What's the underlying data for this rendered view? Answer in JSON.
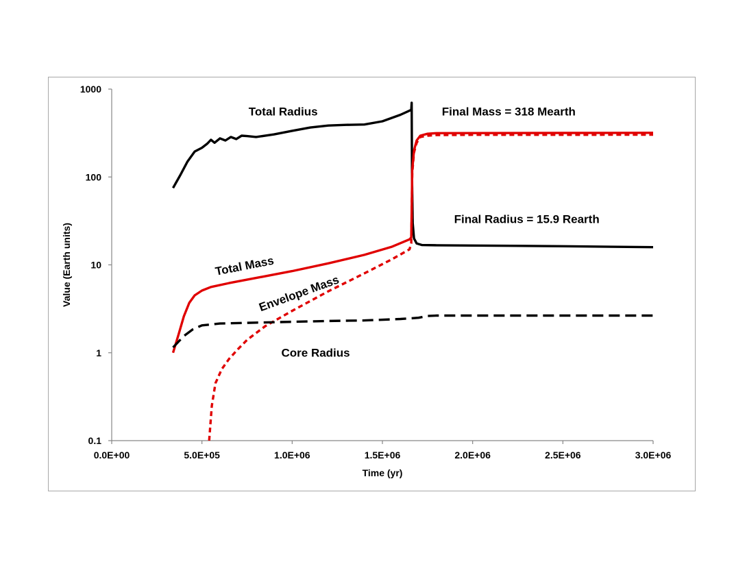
{
  "chart_data": {
    "type": "line",
    "title": "",
    "xlabel": "Time (yr)",
    "ylabel": "Value (Earth units)",
    "x_scale": "linear",
    "y_scale": "log",
    "xlim": [
      0,
      3000000
    ],
    "ylim": [
      0.1,
      1000
    ],
    "grid": false,
    "x_ticks": [
      {
        "value": 0,
        "label": "0.0E+00"
      },
      {
        "value": 500000,
        "label": "5.0E+05"
      },
      {
        "value": 1000000,
        "label": "1.0E+06"
      },
      {
        "value": 1500000,
        "label": "1.5E+06"
      },
      {
        "value": 2000000,
        "label": "2.0E+06"
      },
      {
        "value": 2500000,
        "label": "2.5E+06"
      },
      {
        "value": 3000000,
        "label": "3.0E+06"
      }
    ],
    "y_ticks": [
      {
        "value": 0.1,
        "label": "0.1"
      },
      {
        "value": 1,
        "label": "1"
      },
      {
        "value": 10,
        "label": "10"
      },
      {
        "value": 100,
        "label": "100"
      },
      {
        "value": 1000,
        "label": "1000"
      }
    ],
    "series": [
      {
        "name": "Total Radius",
        "color": "#000000",
        "dash": "solid",
        "points": [
          [
            340000,
            75
          ],
          [
            380000,
            105
          ],
          [
            420000,
            150
          ],
          [
            460000,
            195
          ],
          [
            500000,
            215
          ],
          [
            530000,
            240
          ],
          [
            550000,
            265
          ],
          [
            570000,
            245
          ],
          [
            600000,
            275
          ],
          [
            630000,
            260
          ],
          [
            660000,
            285
          ],
          [
            690000,
            270
          ],
          [
            720000,
            295
          ],
          [
            750000,
            292
          ],
          [
            800000,
            285
          ],
          [
            900000,
            305
          ],
          [
            1000000,
            335
          ],
          [
            1100000,
            365
          ],
          [
            1200000,
            385
          ],
          [
            1300000,
            392
          ],
          [
            1400000,
            395
          ],
          [
            1500000,
            430
          ],
          [
            1600000,
            510
          ],
          [
            1660000,
            580
          ],
          [
            1662000,
            700
          ],
          [
            1664000,
            100
          ],
          [
            1668000,
            30
          ],
          [
            1675000,
            20
          ],
          [
            1690000,
            17.5
          ],
          [
            1720000,
            16.8
          ],
          [
            1800000,
            16.7
          ],
          [
            2000000,
            16.6
          ],
          [
            2500000,
            16.3
          ],
          [
            3000000,
            15.9
          ]
        ]
      },
      {
        "name": "Total Mass",
        "color": "#e00000",
        "dash": "solid",
        "points": [
          [
            340000,
            1.0
          ],
          [
            370000,
            1.6
          ],
          [
            400000,
            2.6
          ],
          [
            430000,
            3.7
          ],
          [
            460000,
            4.5
          ],
          [
            500000,
            5.1
          ],
          [
            550000,
            5.6
          ],
          [
            650000,
            6.2
          ],
          [
            800000,
            7.1
          ],
          [
            1000000,
            8.5
          ],
          [
            1200000,
            10.4
          ],
          [
            1400000,
            13.0
          ],
          [
            1550000,
            16.0
          ],
          [
            1650000,
            19.5
          ],
          [
            1660000,
            20.5
          ],
          [
            1662000,
            40
          ],
          [
            1665000,
            120
          ],
          [
            1675000,
            200
          ],
          [
            1690000,
            260
          ],
          [
            1710000,
            295
          ],
          [
            1750000,
            310
          ],
          [
            1800000,
            315
          ],
          [
            2000000,
            316
          ],
          [
            2500000,
            317
          ],
          [
            3000000,
            318
          ]
        ]
      },
      {
        "name": "Envelope Mass",
        "color": "#e00000",
        "dash": "dashed",
        "points": [
          [
            540000,
            0.1
          ],
          [
            555000,
            0.25
          ],
          [
            575000,
            0.45
          ],
          [
            610000,
            0.65
          ],
          [
            650000,
            0.85
          ],
          [
            700000,
            1.1
          ],
          [
            750000,
            1.4
          ],
          [
            850000,
            2.0
          ],
          [
            1000000,
            3.0
          ],
          [
            1200000,
            5.0
          ],
          [
            1400000,
            8.0
          ],
          [
            1550000,
            11.5
          ],
          [
            1650000,
            15.0
          ],
          [
            1660000,
            17.5
          ],
          [
            1662000,
            35
          ],
          [
            1665000,
            110
          ],
          [
            1675000,
            190
          ],
          [
            1690000,
            245
          ],
          [
            1710000,
            285
          ],
          [
            1750000,
            295
          ],
          [
            1800000,
            300
          ],
          [
            2000000,
            302
          ],
          [
            2500000,
            302
          ],
          [
            3000000,
            303
          ]
        ]
      },
      {
        "name": "Core Radius",
        "color": "#000000",
        "dash": "dashed",
        "points": [
          [
            340000,
            1.15
          ],
          [
            400000,
            1.55
          ],
          [
            450000,
            1.85
          ],
          [
            500000,
            2.05
          ],
          [
            600000,
            2.15
          ],
          [
            800000,
            2.2
          ],
          [
            1000000,
            2.25
          ],
          [
            1200000,
            2.3
          ],
          [
            1400000,
            2.33
          ],
          [
            1600000,
            2.42
          ],
          [
            1700000,
            2.5
          ],
          [
            1750000,
            2.62
          ],
          [
            1800000,
            2.65
          ],
          [
            2000000,
            2.65
          ],
          [
            2500000,
            2.65
          ],
          [
            3000000,
            2.65
          ]
        ]
      }
    ],
    "annotations": [
      {
        "text": "Total Radius",
        "x": 950000,
        "y": 500,
        "rotate": 0
      },
      {
        "text": "Final Mass = 318 Mearth",
        "x": 2200000,
        "y": 500,
        "rotate": 0
      },
      {
        "text": "Final Radius = 15.9 Rearth",
        "x": 2300000,
        "y": 30,
        "rotate": 0
      },
      {
        "text": "Total Mass",
        "x": 740000,
        "y": 8.8,
        "rotate": -11
      },
      {
        "text": "Envelope Mass",
        "x": 1045000,
        "y": 4.3,
        "rotate": -20
      },
      {
        "text": "Core Radius",
        "x": 1130000,
        "y": 0.9,
        "rotate": 0
      }
    ]
  }
}
